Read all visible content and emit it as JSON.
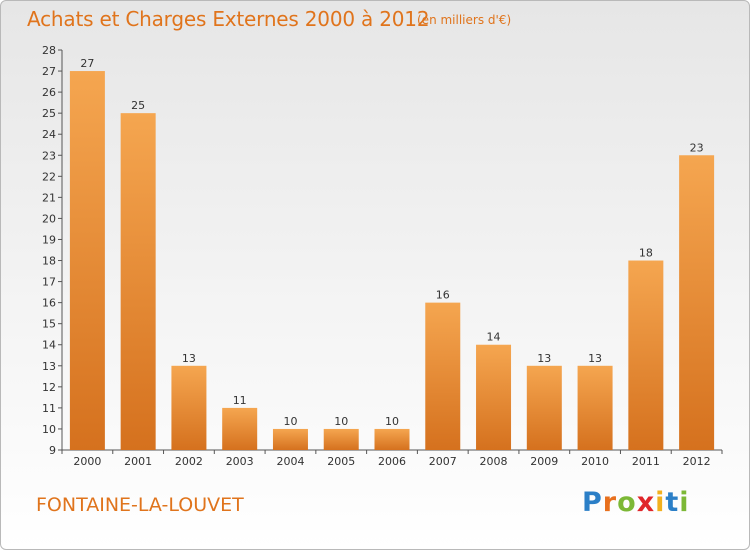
{
  "header": {
    "title": "Achats et Charges Externes 2000 à 2012",
    "subtitle": "(en milliers d'€)"
  },
  "footer": {
    "commune": "FONTAINE-LA-LOUVET",
    "brand": {
      "text": "Proxiti",
      "letters": [
        "P",
        "r",
        "o",
        "x",
        "i",
        "t",
        "i"
      ],
      "colors": [
        "#2b7fc7",
        "#e8701e",
        "#7cb836",
        "#e0262a",
        "#f2b01e",
        "#2b7fc7",
        "#7cb836"
      ]
    }
  },
  "chart_data": {
    "type": "bar",
    "categories": [
      "2000",
      "2001",
      "2002",
      "2003",
      "2004",
      "2005",
      "2006",
      "2007",
      "2008",
      "2009",
      "2010",
      "2011",
      "2012"
    ],
    "values": [
      27,
      25,
      13,
      11,
      10,
      10,
      10,
      16,
      14,
      13,
      13,
      18,
      23
    ],
    "data_labels": [
      "27",
      "25",
      "13",
      "11",
      "10",
      "10",
      "10",
      "16",
      "14",
      "13",
      "13",
      "18",
      "23"
    ],
    "ylim": [
      9,
      28
    ],
    "yticks": [
      9,
      10,
      11,
      12,
      13,
      14,
      15,
      16,
      17,
      18,
      19,
      20,
      21,
      22,
      23,
      24,
      25,
      26,
      27,
      28
    ],
    "ytick_labels": [
      "9",
      "10",
      "11",
      "12",
      "13",
      "14",
      "15",
      "16",
      "17",
      "18",
      "19",
      "20",
      "21",
      "22",
      "23",
      "24",
      "25",
      "26",
      "27",
      "28"
    ],
    "grid": false,
    "colors": {
      "bar_light": "#f5a650",
      "bar_dark": "#d5711e",
      "text": "#333333",
      "axis": "#555555"
    }
  }
}
